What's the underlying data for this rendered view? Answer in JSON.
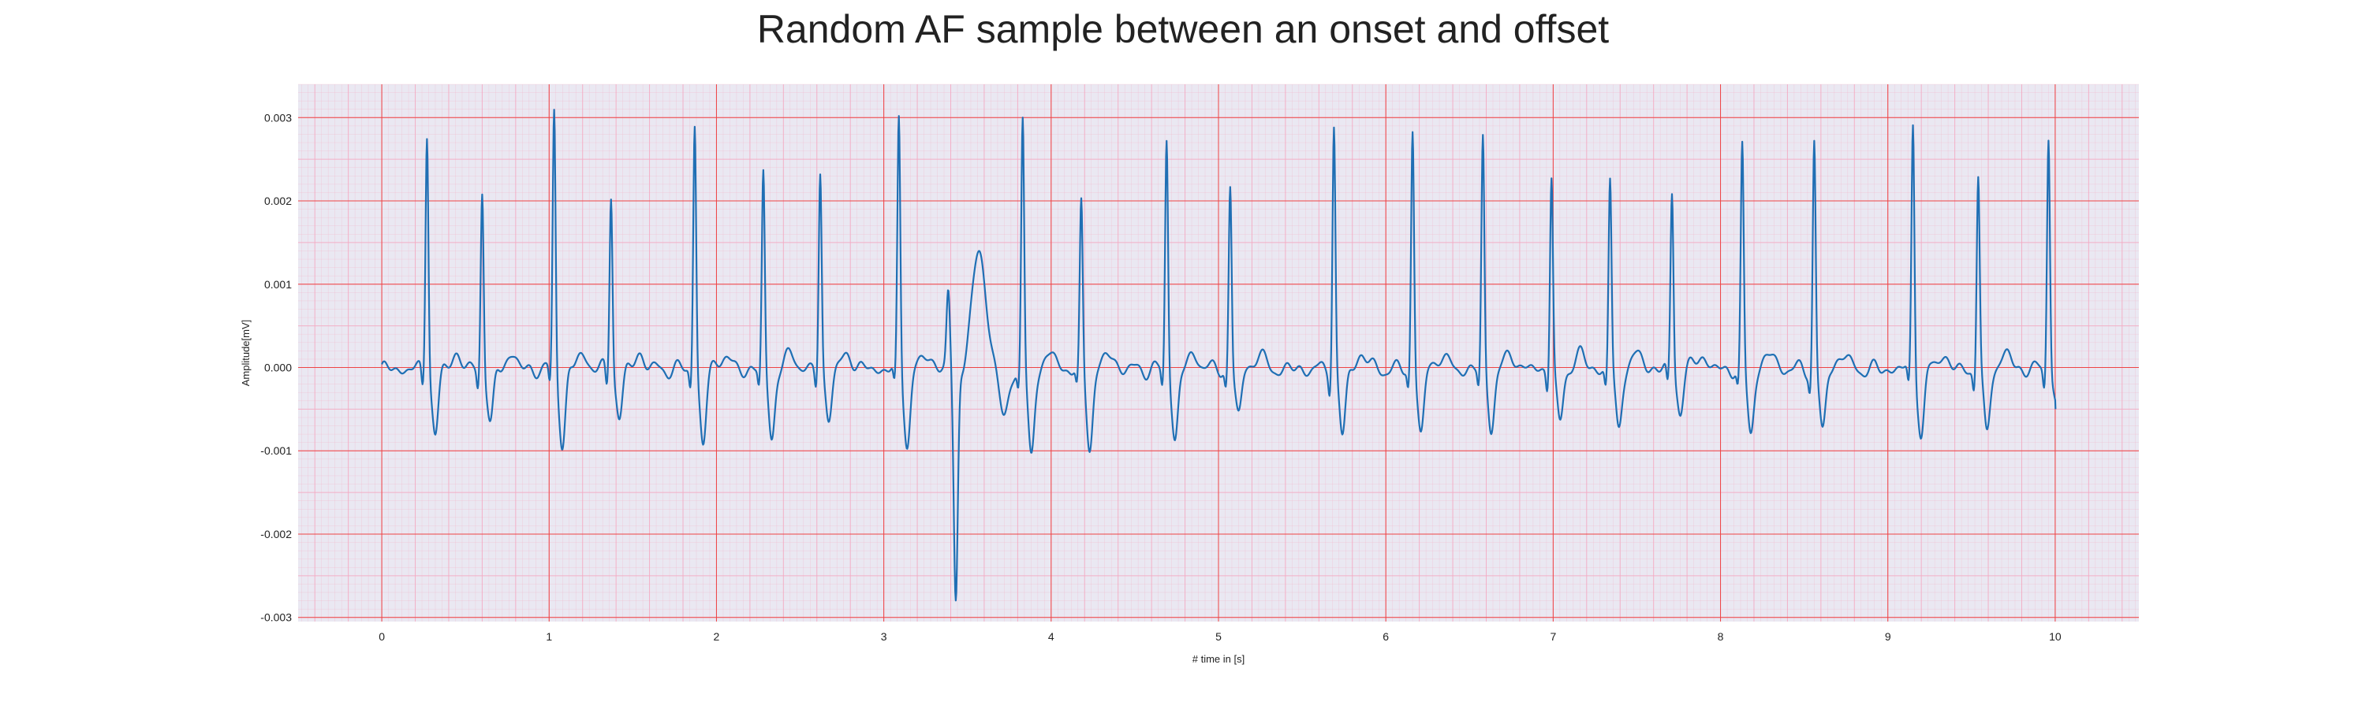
{
  "chart_data": {
    "type": "line",
    "title": "Random AF sample between an onset and offset",
    "xlabel": "# time in [s]",
    "ylabel": "Amplitude[mV]",
    "xlim": [
      -0.5,
      10.5
    ],
    "ylim": [
      -0.00305,
      0.0034
    ],
    "x_ticks": [
      0,
      1,
      2,
      3,
      4,
      5,
      6,
      7,
      8,
      9,
      10
    ],
    "x_tick_labels": [
      "0",
      "1",
      "2",
      "3",
      "4",
      "5",
      "6",
      "7",
      "8",
      "9",
      "10"
    ],
    "y_ticks": [
      -0.003,
      -0.002,
      -0.001,
      0.0,
      0.001,
      0.002,
      0.003
    ],
    "y_tick_labels": [
      "-0.003",
      "-0.002",
      "-0.001",
      "0.000",
      "0.001",
      "0.002",
      "0.003"
    ],
    "grid": "major red, minor pink",
    "background_color": "#eae8f2",
    "major_grid_color": "#ee4444",
    "minor_grid_color": "#f4aac2",
    "line_color": "#1f6fb4",
    "series": [
      {
        "beats": [
          {
            "t": 0.27,
            "peak": 0.0029,
            "trough": -0.00082
          },
          {
            "t": 0.6,
            "peak": 0.00218,
            "trough": -0.00068
          },
          {
            "t": 1.03,
            "peak": 0.00312,
            "trough": -0.0009
          },
          {
            "t": 1.37,
            "peak": 0.00215,
            "trough": -0.0006
          },
          {
            "t": 1.87,
            "peak": 0.00298,
            "trough": -0.00092
          },
          {
            "t": 2.28,
            "peak": 0.00235,
            "trough": -0.00082
          },
          {
            "t": 2.62,
            "peak": 0.00234,
            "trough": -0.00055
          },
          {
            "t": 3.09,
            "peak": 0.003,
            "trough": -0.00088
          },
          {
            "t": 3.83,
            "peak": 0.003,
            "trough": -0.00105
          },
          {
            "t": 4.18,
            "peak": 0.00196,
            "trough": -0.00092
          },
          {
            "t": 4.69,
            "peak": 0.00278,
            "trough": -0.00085
          },
          {
            "t": 5.07,
            "peak": 0.0022,
            "trough": -0.00055
          },
          {
            "t": 5.69,
            "peak": 0.00296,
            "trough": -0.00082
          },
          {
            "t": 6.16,
            "peak": 0.00288,
            "trough": -0.00078
          },
          {
            "t": 6.58,
            "peak": 0.00276,
            "trough": -0.0007
          },
          {
            "t": 6.99,
            "peak": 0.00235,
            "trough": -0.00068
          },
          {
            "t": 7.34,
            "peak": 0.00227,
            "trough": -0.0007
          },
          {
            "t": 7.71,
            "peak": 0.00214,
            "trough": -0.0005
          },
          {
            "t": 8.13,
            "peak": 0.00265,
            "trough": -0.00075
          },
          {
            "t": 8.56,
            "peak": 0.00274,
            "trough": -0.00075
          },
          {
            "t": 9.15,
            "peak": 0.00298,
            "trough": -0.00082
          },
          {
            "t": 9.54,
            "peak": 0.00231,
            "trough": -0.00075
          },
          {
            "t": 9.96,
            "peak": 0.00286,
            "trough": -0.0005
          }
        ],
        "ectopic_complex": {
          "t_start": 3.3,
          "t_end": 3.7,
          "min": -0.00278,
          "max": 0.00145,
          "min_at": 3.43,
          "max_at": 3.57
        },
        "x_range": [
          0.0,
          10.0
        ]
      }
    ]
  }
}
